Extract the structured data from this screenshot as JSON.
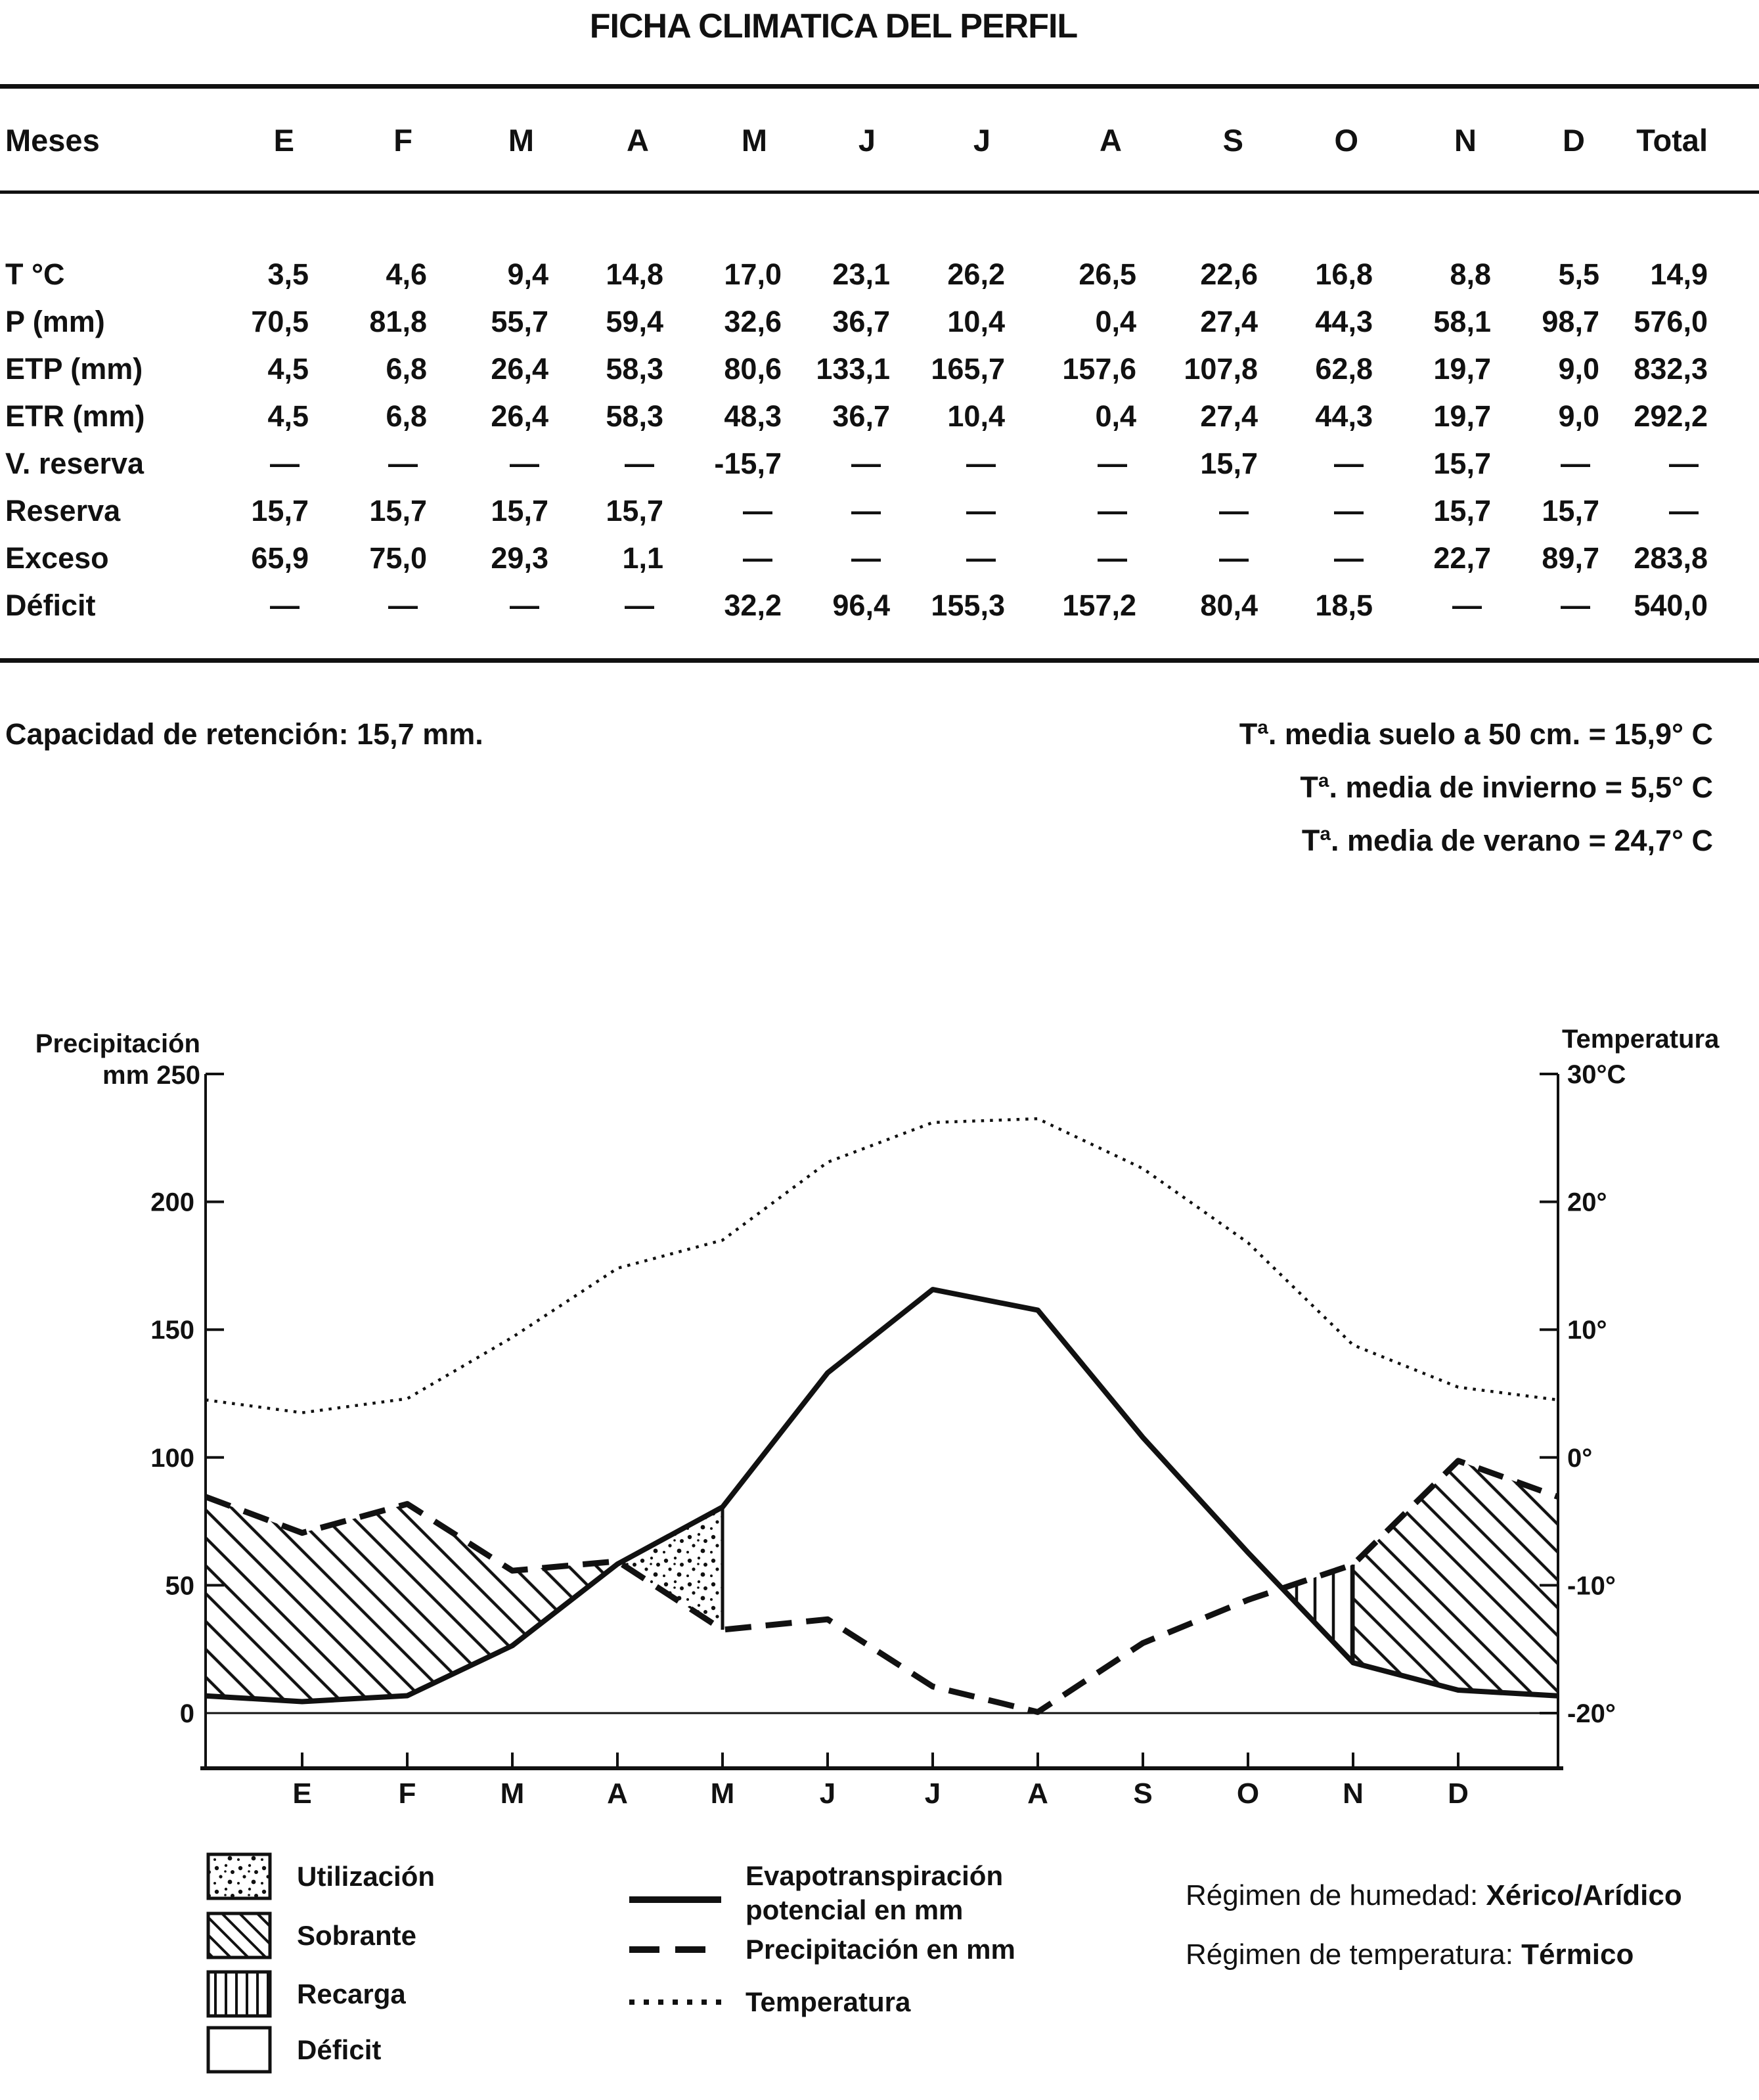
{
  "title": "FICHA CLIMATICA DEL PERFIL",
  "table": {
    "row_header": "Meses",
    "columns": [
      "E",
      "F",
      "M",
      "A",
      "M",
      "J",
      "J",
      "A",
      "S",
      "O",
      "N",
      "D",
      "Total"
    ],
    "rows": [
      {
        "label": "T °C",
        "values": [
          "3,5",
          "4,6",
          "9,4",
          "14,8",
          "17,0",
          "23,1",
          "26,2",
          "26,5",
          "22,6",
          "16,8",
          "8,8",
          "5,5",
          "14,9"
        ]
      },
      {
        "label": "P (mm)",
        "values": [
          "70,5",
          "81,8",
          "55,7",
          "59,4",
          "32,6",
          "36,7",
          "10,4",
          "0,4",
          "27,4",
          "44,3",
          "58,1",
          "98,7",
          "576,0"
        ]
      },
      {
        "label": "ETP (mm)",
        "values": [
          "4,5",
          "6,8",
          "26,4",
          "58,3",
          "80,6",
          "133,1",
          "165,7",
          "157,6",
          "107,8",
          "62,8",
          "19,7",
          "9,0",
          "832,3"
        ]
      },
      {
        "label": "ETR (mm)",
        "values": [
          "4,5",
          "6,8",
          "26,4",
          "58,3",
          "48,3",
          "36,7",
          "10,4",
          "0,4",
          "27,4",
          "44,3",
          "19,7",
          "9,0",
          "292,2"
        ]
      },
      {
        "label": "V. reserva",
        "values": [
          "—",
          "—",
          "—",
          "—",
          "-15,7",
          "—",
          "—",
          "—",
          "15,7",
          "—",
          "15,7",
          "—",
          "—"
        ]
      },
      {
        "label": "Reserva",
        "values": [
          "15,7",
          "15,7",
          "15,7",
          "15,7",
          "—",
          "—",
          "—",
          "—",
          "—",
          "—",
          "15,7",
          "15,7",
          "—"
        ]
      },
      {
        "label": "Exceso",
        "values": [
          "65,9",
          "75,0",
          "29,3",
          "1,1",
          "—",
          "—",
          "—",
          "—",
          "—",
          "—",
          "22,7",
          "89,7",
          "283,8"
        ]
      },
      {
        "label": "Déficit",
        "values": [
          "—",
          "—",
          "—",
          "—",
          "32,2",
          "96,4",
          "155,3",
          "157,2",
          "80,4",
          "18,5",
          "—",
          "—",
          "540,0"
        ]
      }
    ]
  },
  "notes": {
    "left": "Capacidad de retención: 15,7 mm.",
    "right": [
      "Tª. media suelo a 50 cm. = 15,9° C",
      "Tª. media de invierno = 5,5° C",
      "Tª. media de verano = 24,7° C"
    ]
  },
  "chart_data": {
    "type": "line",
    "months": [
      "E",
      "F",
      "M",
      "A",
      "M",
      "J",
      "J",
      "A",
      "S",
      "O",
      "N",
      "D"
    ],
    "y_left": {
      "title": "Precipitación",
      "corner_label": "mm 250",
      "unit": "mm",
      "ticks": [
        0,
        50,
        100,
        150,
        200,
        250
      ],
      "range": [
        0,
        250
      ],
      "tick_labels": [
        "0",
        "50",
        "100",
        "150",
        "200"
      ]
    },
    "y_right": {
      "title": "Temperatura",
      "unit": "°C",
      "range": [
        -20,
        30
      ],
      "ticks": [
        30,
        20,
        10,
        0,
        -10,
        -20
      ],
      "tick_labels": [
        "30°C",
        "20°",
        "10°",
        "0°",
        "-10°",
        "-20°"
      ]
    },
    "series": [
      {
        "name": "Evapotranspiración potencial en mm",
        "style": "solid",
        "axis": "left",
        "values": [
          4.5,
          6.8,
          26.4,
          58.3,
          80.6,
          133.1,
          165.7,
          157.6,
          107.8,
          62.8,
          19.7,
          9.0
        ]
      },
      {
        "name": "Precipitación en mm",
        "style": "dashed",
        "axis": "left",
        "values": [
          70.5,
          81.8,
          55.7,
          59.4,
          32.6,
          36.7,
          10.4,
          0.4,
          27.4,
          44.3,
          58.1,
          98.7
        ]
      },
      {
        "name": "Temperatura",
        "style": "dotted",
        "axis": "right",
        "values": [
          3.5,
          4.6,
          9.4,
          14.8,
          17.0,
          23.1,
          26.2,
          26.5,
          22.6,
          16.8,
          8.8,
          5.5
        ]
      }
    ],
    "areas": [
      {
        "label": "Sobrante",
        "pattern": "diagonal",
        "where": "P > ETP (invierno: E–A y N–D)"
      },
      {
        "label": "Utilización",
        "pattern": "stipple",
        "where": "ETP > P usando reserva (A–M)"
      },
      {
        "label": "Déficit",
        "pattern": "none",
        "where": "ETP > P (M–O)"
      },
      {
        "label": "Recarga",
        "pattern": "vertical",
        "where": "P > ETP recargando reserva (O–N)"
      }
    ],
    "grid": false,
    "legend_position": "bottom"
  },
  "legend": {
    "areas": [
      {
        "label": "Utilización",
        "pattern": "stipple"
      },
      {
        "label": "Sobrante",
        "pattern": "diagonal"
      },
      {
        "label": "Recarga",
        "pattern": "vertical"
      },
      {
        "label": "Déficit",
        "pattern": "none"
      }
    ],
    "lines": [
      {
        "label_lines": [
          "Evapotranspiración",
          "potencial en mm"
        ],
        "style": "solid"
      },
      {
        "label_lines": [
          "Precipitación en mm"
        ],
        "style": "dashed"
      },
      {
        "label_lines": [
          "Temperatura"
        ],
        "style": "dotted"
      }
    ],
    "regimes": [
      {
        "prefix": "Régimen de humedad:",
        "value": "Xérico/Arídico"
      },
      {
        "prefix": "Régimen de temperatura:",
        "value": "Térmico"
      }
    ]
  }
}
